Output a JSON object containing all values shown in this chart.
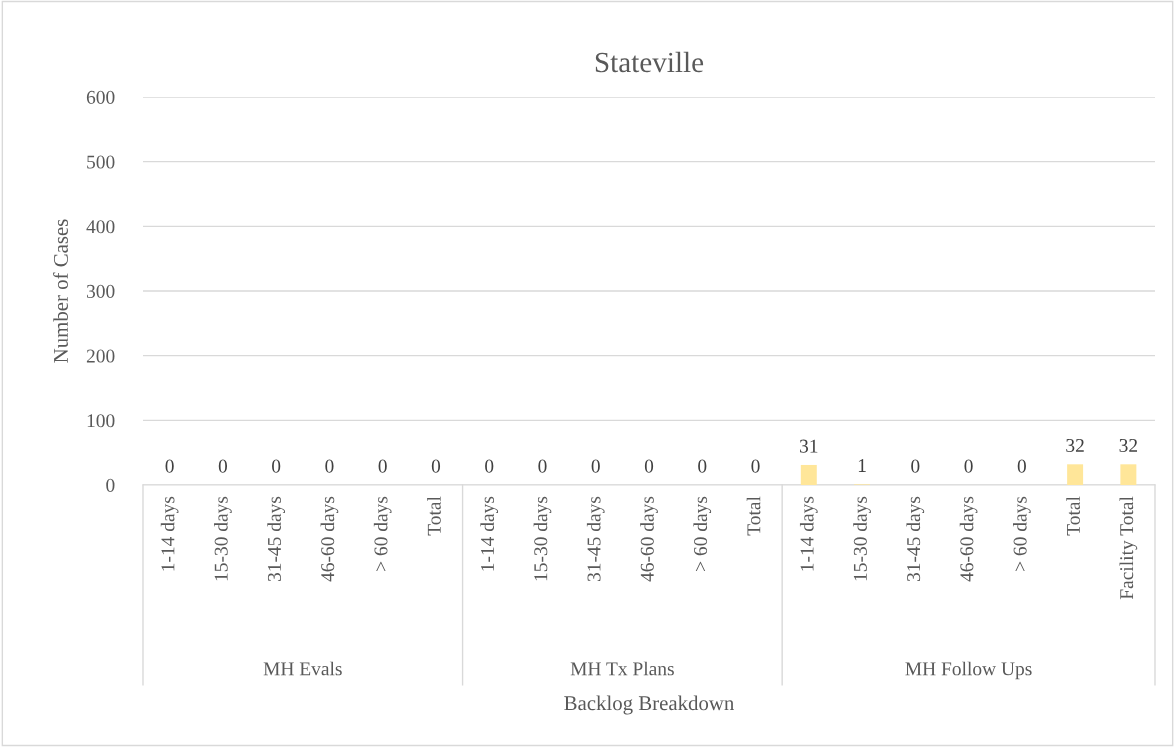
{
  "chart_data": {
    "type": "bar",
    "title": "Stateville",
    "xlabel": "Backlog Breakdown",
    "ylabel": "Number of Cases",
    "categories": [
      "1-14 days",
      "15-30 days",
      "31-45 days",
      "46-60 days",
      "> 60 days",
      "Total",
      "1-14 days",
      "15-30 days",
      "31-45 days",
      "46-60 days",
      "> 60 days",
      "Total",
      "1-14 days",
      "15-30 days",
      "31-45 days",
      "46-60 days",
      "> 60 days",
      "Total",
      "Facility Total"
    ],
    "values": [
      0,
      0,
      0,
      0,
      0,
      0,
      0,
      0,
      0,
      0,
      0,
      0,
      31,
      1,
      0,
      0,
      0,
      32,
      32
    ],
    "color": "#ffe699",
    "annotations": [
      "MH Evals",
      "MH Tx Plans",
      "MH Follow Ups"
    ],
    "ylim": [
      0,
      600
    ],
    "yticks": [
      0,
      100,
      200,
      300,
      400,
      500,
      600
    ],
    "grid": "y",
    "data_labels": true
  }
}
